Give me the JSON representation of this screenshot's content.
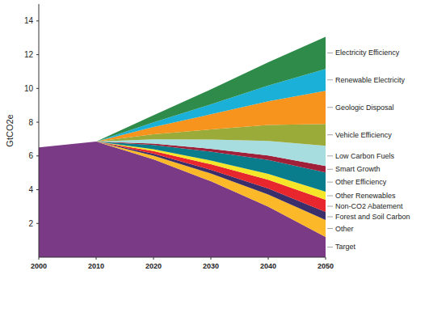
{
  "chart_data": {
    "type": "area",
    "stacked": true,
    "y_label": "GtCO2e",
    "x": [
      2000,
      2010,
      2020,
      2030,
      2040,
      2050
    ],
    "xlim": [
      2000,
      2050
    ],
    "xticks": [
      2000,
      2010,
      2020,
      2030,
      2040,
      2050
    ],
    "ylim": [
      0,
      15
    ],
    "yticks": [
      2,
      4,
      6,
      8,
      10,
      12,
      14
    ],
    "series": [
      {
        "name": "Target",
        "color": "#7b3a86",
        "values": [
          6.5,
          6.85,
          5.8,
          4.5,
          3.0,
          1.2
        ]
      },
      {
        "name": "Other",
        "color": "#fbb829",
        "values": [
          0,
          0,
          0.22,
          0.46,
          0.72,
          1.0
        ]
      },
      {
        "name": "Forest and Soil Carbon",
        "color": "#3a2f6b",
        "values": [
          0,
          0,
          0.11,
          0.22,
          0.35,
          0.48
        ]
      },
      {
        "name": "Non-CO2 Abatement",
        "color": "#e8262d",
        "values": [
          0,
          0,
          0.16,
          0.33,
          0.52,
          0.72
        ]
      },
      {
        "name": "Other Renewables",
        "color": "#f5e62a",
        "values": [
          0,
          0,
          0.11,
          0.22,
          0.35,
          0.48
        ]
      },
      {
        "name": "Other Efficiency",
        "color": "#0a7d8c",
        "values": [
          0,
          0,
          0.25,
          0.52,
          0.82,
          1.14
        ]
      },
      {
        "name": "Smart Growth",
        "color": "#a0203a",
        "values": [
          0,
          0,
          0.08,
          0.17,
          0.27,
          0.38
        ]
      },
      {
        "name": "Low Carbon Fuels",
        "color": "#a8dde0",
        "values": [
          0,
          0,
          0.26,
          0.55,
          0.86,
          1.2
        ]
      },
      {
        "name": "Vehicle Efficiency",
        "color": "#9aab3a",
        "values": [
          0,
          0,
          0.29,
          0.6,
          0.94,
          1.3
        ]
      },
      {
        "name": "Geologic Disposal",
        "color": "#f7941d",
        "values": [
          0,
          0,
          0.43,
          0.9,
          1.41,
          1.96
        ]
      },
      {
        "name": "Renewable Electricity",
        "color": "#1ab0d8",
        "values": [
          0,
          0,
          0.28,
          0.59,
          0.93,
          1.29
        ]
      },
      {
        "name": "Electricity Efficiency",
        "color": "#2e8b4a",
        "values": [
          0,
          0,
          0.42,
          0.88,
          1.38,
          1.91
        ]
      }
    ]
  }
}
